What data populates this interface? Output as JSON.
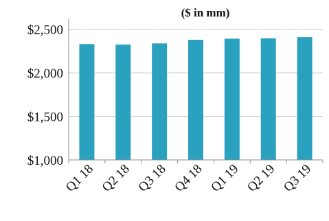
{
  "chart_data": {
    "type": "bar",
    "title": "($ in mm)",
    "categories": [
      "Q1 18",
      "Q2 18",
      "Q3 18",
      "Q4 18",
      "Q1 19",
      "Q2 19",
      "Q3 19"
    ],
    "values": [
      2330,
      2325,
      2338,
      2380,
      2392,
      2397,
      2410
    ],
    "ylim": [
      1000,
      2600
    ],
    "yticks": [
      1000,
      1500,
      2000,
      2500
    ],
    "ytick_labels": [
      "$1,000",
      "$1,500",
      "$2,000",
      "$2,500"
    ],
    "xlabel": "",
    "ylabel": "",
    "grid": true,
    "bar_color": "#2aa1bf",
    "grid_color": "#c8c8c8",
    "axis_color": "#8c8c8c"
  }
}
